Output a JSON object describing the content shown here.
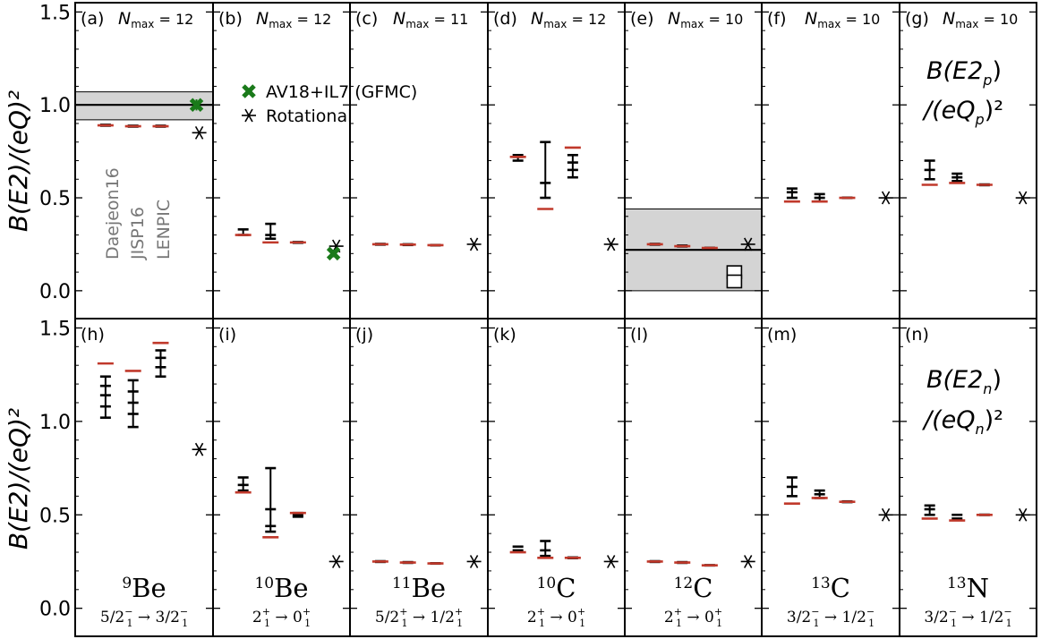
{
  "figure": {
    "ylabel": "B(E2)/(eQ)²",
    "method_labels": [
      "Daejeon16",
      "JISP16",
      "LENPIC"
    ],
    "legend": [
      {
        "label": "AV18+IL7 (GFMC)",
        "marker": "x-thick",
        "color": "#1a7a1a"
      },
      {
        "label": "Rotational",
        "marker": "asterisk",
        "color": "#000000"
      }
    ],
    "colors": {
      "sat": "#c0392b",
      "bar": "#000000",
      "band": "#d4d4d4",
      "gfmc": "#1a7a1a"
    },
    "row_labels": [
      {
        "line1": "B(E2",
        "sub": "p",
        "line1_end": ")",
        "line2": "/(eQ",
        "line2_end": ")²"
      },
      {
        "line1": "B(E2",
        "sub": "n",
        "line1_end": ")",
        "line2": "/(eQ",
        "line2_end": ")²"
      }
    ]
  },
  "chart_data": [
    {
      "id": "a",
      "row": 0,
      "col": 0,
      "tag": "(a)",
      "nmax": "N",
      "nmax_sub": "max",
      "nmax_val": "= 12",
      "type": "scatter",
      "ylim": [
        -0.15,
        1.55
      ],
      "yticks": [
        0.0,
        0.5,
        1.0,
        1.5
      ],
      "ytick_labels": [
        "0.0",
        "0.5",
        "1.0",
        "1.5"
      ],
      "band": [
        0.92,
        1.07
      ],
      "band_center": 1.0,
      "methods": [
        {
          "sat": 0.89,
          "points": [
            0.888,
            0.893
          ]
        },
        {
          "sat": 0.885,
          "points": [
            0.883,
            0.888
          ]
        },
        {
          "sat": 0.885,
          "points": [
            0.883,
            0.888
          ]
        }
      ],
      "rot": 0.85,
      "gfmc": [
        {
          "y": 1.0,
          "err": 0.03
        }
      ]
    },
    {
      "id": "b",
      "row": 0,
      "col": 1,
      "tag": "(b)",
      "nmax": "N",
      "nmax_sub": "max",
      "nmax_val": "= 12",
      "type": "scatter",
      "ylim": [
        -0.15,
        1.55
      ],
      "methods": [
        {
          "sat": 0.3,
          "points": [
            0.3,
            0.33
          ]
        },
        {
          "sat": 0.26,
          "points": [
            0.28,
            0.3,
            0.36
          ]
        },
        {
          "sat": 0.26,
          "points": [
            0.258,
            0.262
          ]
        }
      ],
      "rot": 0.24,
      "gfmc": [
        {
          "y": 0.2,
          "err": 0.02
        }
      ]
    },
    {
      "id": "c",
      "row": 0,
      "col": 2,
      "tag": "(c)",
      "nmax": "N",
      "nmax_sub": "max",
      "nmax_val": "= 11",
      "type": "scatter",
      "ylim": [
        -0.15,
        1.55
      ],
      "methods": [
        {
          "sat": 0.25,
          "points": [
            0.248,
            0.252
          ]
        },
        {
          "sat": 0.248,
          "points": [
            0.246,
            0.25
          ]
        },
        {
          "sat": 0.245,
          "points": [
            0.244,
            0.246
          ]
        }
      ],
      "rot": 0.25
    },
    {
      "id": "d",
      "row": 0,
      "col": 3,
      "tag": "(d)",
      "nmax": "N",
      "nmax_sub": "max",
      "nmax_val": "= 12",
      "type": "scatter",
      "ylim": [
        -0.15,
        1.55
      ],
      "methods": [
        {
          "sat": 0.72,
          "points": [
            0.7,
            0.72,
            0.73
          ]
        },
        {
          "sat": 0.44,
          "points": [
            0.5,
            0.58,
            0.8
          ]
        },
        {
          "sat": 0.77,
          "points": [
            0.61,
            0.65,
            0.69,
            0.73
          ]
        }
      ],
      "rot": 0.25
    },
    {
      "id": "e",
      "row": 0,
      "col": 4,
      "tag": "(e)",
      "nmax": "N",
      "nmax_sub": "max",
      "nmax_val": "= 10",
      "type": "scatter",
      "ylim": [
        -0.15,
        1.55
      ],
      "band": [
        0.0,
        0.44
      ],
      "band_center": 0.22,
      "boxes": [
        0.1,
        0.05
      ],
      "methods": [
        {
          "sat": 0.25,
          "points": [
            0.248,
            0.252
          ]
        },
        {
          "sat": 0.24,
          "points": [
            0.238,
            0.243
          ]
        },
        {
          "sat": 0.23,
          "points": [
            0.229,
            0.231
          ]
        }
      ],
      "rot": 0.25
    },
    {
      "id": "f",
      "row": 0,
      "col": 5,
      "tag": "(f)",
      "nmax": "N",
      "nmax_sub": "max",
      "nmax_val": "= 10",
      "type": "scatter",
      "ylim": [
        -0.15,
        1.55
      ],
      "methods": [
        {
          "sat": 0.48,
          "points": [
            0.5,
            0.53,
            0.55
          ]
        },
        {
          "sat": 0.48,
          "points": [
            0.48,
            0.5,
            0.52
          ]
        },
        {
          "sat": 0.5,
          "points": [
            0.499,
            0.501
          ]
        }
      ],
      "rot": 0.5
    },
    {
      "id": "g",
      "row": 0,
      "col": 6,
      "tag": "(g)",
      "nmax": "N",
      "nmax_sub": "max",
      "nmax_val": "= 10",
      "type": "scatter",
      "ylim": [
        -0.15,
        1.55
      ],
      "methods": [
        {
          "sat": 0.57,
          "points": [
            0.6,
            0.65,
            0.7
          ]
        },
        {
          "sat": 0.58,
          "points": [
            0.59,
            0.61,
            0.63
          ]
        },
        {
          "sat": 0.57,
          "points": [
            0.568,
            0.572
          ]
        }
      ],
      "rot": 0.5
    },
    {
      "id": "h",
      "row": 1,
      "col": 0,
      "tag": "(h)",
      "type": "scatter",
      "ylim": [
        -0.15,
        1.55
      ],
      "yticks": [
        0.0,
        0.5,
        1.0,
        1.5
      ],
      "ytick_labels": [
        "0.0",
        "0.5",
        "1.0",
        "1.5"
      ],
      "methods": [
        {
          "sat": 1.31,
          "points": [
            1.02,
            1.08,
            1.14,
            1.19,
            1.24
          ]
        },
        {
          "sat": 1.27,
          "points": [
            0.97,
            1.04,
            1.1,
            1.16,
            1.22
          ]
        },
        {
          "sat": 1.42,
          "points": [
            1.24,
            1.29,
            1.34,
            1.38
          ]
        }
      ],
      "rot": 0.85,
      "nucleus": {
        "mass": "9",
        "el": "Be"
      },
      "transition": {
        "j1": "5/2",
        "p1": "−",
        "k1": "1",
        "j2": "3/2",
        "p2": "−",
        "k2": "1"
      }
    },
    {
      "id": "i",
      "row": 1,
      "col": 1,
      "tag": "(i)",
      "type": "scatter",
      "ylim": [
        -0.15,
        1.55
      ],
      "methods": [
        {
          "sat": 0.62,
          "points": [
            0.63,
            0.66,
            0.7
          ]
        },
        {
          "sat": 0.38,
          "points": [
            0.41,
            0.44,
            0.53,
            0.75
          ]
        },
        {
          "sat": 0.51,
          "points": [
            0.49,
            0.5,
            0.51
          ]
        }
      ],
      "rot": 0.25,
      "nucleus": {
        "mass": "10",
        "el": "Be"
      },
      "transition": {
        "j1": "2",
        "p1": "+",
        "k1": "1",
        "j2": "0",
        "p2": "+",
        "k2": "1"
      }
    },
    {
      "id": "j",
      "row": 1,
      "col": 2,
      "tag": "(j)",
      "type": "scatter",
      "ylim": [
        -0.15,
        1.55
      ],
      "methods": [
        {
          "sat": 0.25,
          "points": [
            0.248,
            0.252
          ]
        },
        {
          "sat": 0.245,
          "points": [
            0.243,
            0.247
          ]
        },
        {
          "sat": 0.24,
          "points": [
            0.239,
            0.241
          ]
        }
      ],
      "rot": 0.25,
      "nucleus": {
        "mass": "11",
        "el": "Be"
      },
      "transition": {
        "j1": "5/2",
        "p1": "+",
        "k1": "1",
        "j2": "1/2",
        "p2": "+",
        "k2": "1"
      }
    },
    {
      "id": "k",
      "row": 1,
      "col": 3,
      "tag": "(k)",
      "type": "scatter",
      "ylim": [
        -0.15,
        1.55
      ],
      "methods": [
        {
          "sat": 0.3,
          "points": [
            0.31,
            0.33
          ]
        },
        {
          "sat": 0.27,
          "points": [
            0.28,
            0.31,
            0.36
          ]
        },
        {
          "sat": 0.27,
          "points": [
            0.268,
            0.272
          ]
        }
      ],
      "rot": 0.25,
      "nucleus": {
        "mass": "10",
        "el": "C"
      },
      "transition": {
        "j1": "2",
        "p1": "+",
        "k1": "1",
        "j2": "0",
        "p2": "+",
        "k2": "1"
      }
    },
    {
      "id": "l",
      "row": 1,
      "col": 4,
      "tag": "(l)",
      "type": "scatter",
      "ylim": [
        -0.15,
        1.55
      ],
      "methods": [
        {
          "sat": 0.25,
          "points": [
            0.248,
            0.252
          ]
        },
        {
          "sat": 0.245,
          "points": [
            0.243,
            0.247
          ]
        },
        {
          "sat": 0.23,
          "points": [
            0.229,
            0.231
          ]
        }
      ],
      "rot": 0.25,
      "nucleus": {
        "mass": "12",
        "el": "C"
      },
      "transition": {
        "j1": "2",
        "p1": "+",
        "k1": "1",
        "j2": "0",
        "p2": "+",
        "k2": "1"
      }
    },
    {
      "id": "m",
      "row": 1,
      "col": 5,
      "tag": "(m)",
      "type": "scatter",
      "ylim": [
        -0.15,
        1.55
      ],
      "methods": [
        {
          "sat": 0.56,
          "points": [
            0.6,
            0.65,
            0.7
          ]
        },
        {
          "sat": 0.59,
          "points": [
            0.59,
            0.61,
            0.63
          ]
        },
        {
          "sat": 0.57,
          "points": [
            0.568,
            0.572
          ]
        }
      ],
      "rot": 0.5,
      "nucleus": {
        "mass": "13",
        "el": "C"
      },
      "transition": {
        "j1": "3/2",
        "p1": "−",
        "k1": "1",
        "j2": "1/2",
        "p2": "−",
        "k2": "1"
      }
    },
    {
      "id": "n",
      "row": 1,
      "col": 6,
      "tag": "(n)",
      "type": "scatter",
      "ylim": [
        -0.15,
        1.55
      ],
      "methods": [
        {
          "sat": 0.48,
          "points": [
            0.5,
            0.53,
            0.55
          ]
        },
        {
          "sat": 0.47,
          "points": [
            0.48,
            0.5
          ]
        },
        {
          "sat": 0.5,
          "points": [
            0.499,
            0.501
          ]
        }
      ],
      "rot": 0.5,
      "nucleus": {
        "mass": "13",
        "el": "N"
      },
      "transition": {
        "j1": "3/2",
        "p1": "−",
        "k1": "1",
        "j2": "1/2",
        "p2": "−",
        "k2": "1"
      }
    }
  ]
}
